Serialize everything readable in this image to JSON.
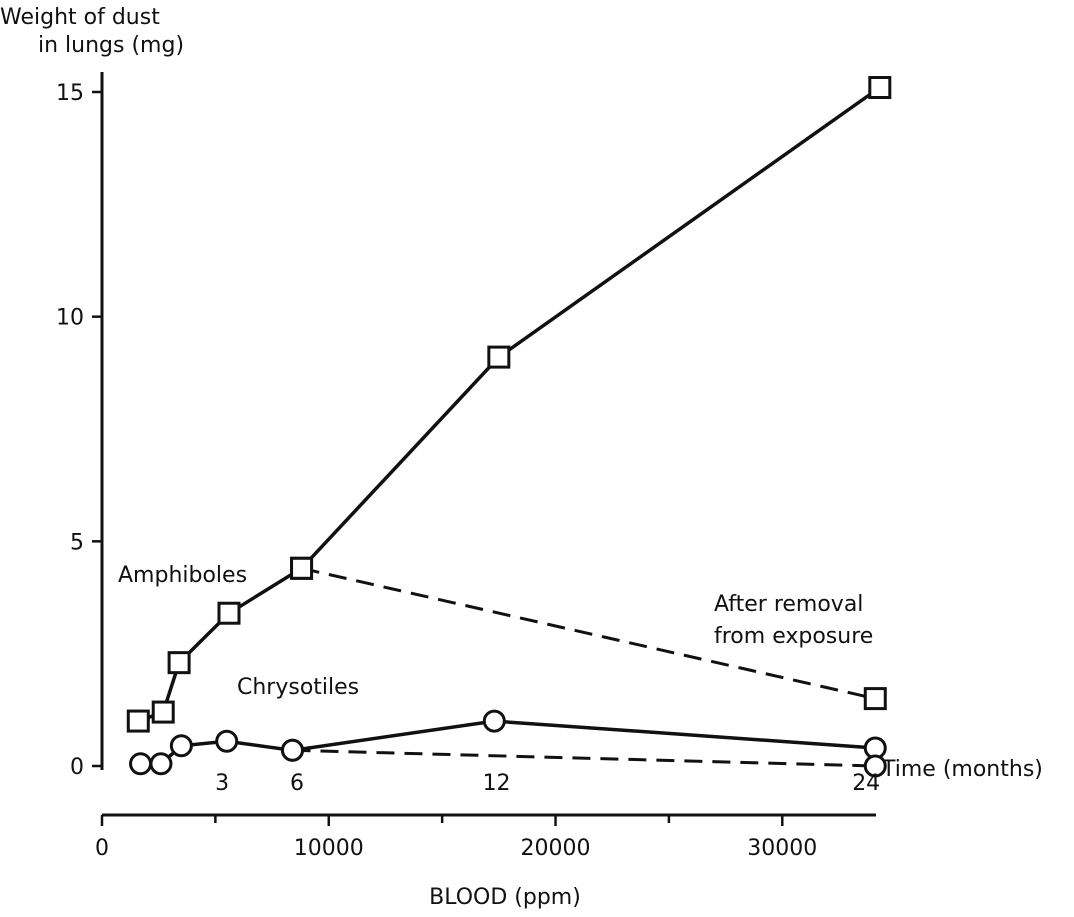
{
  "chart_data": {
    "type": "line",
    "ylabel_line1": "Weight of dust",
    "ylabel_line2": "in lungs (mg)",
    "xlabel": "BLOOD (ppm)",
    "xlim": [
      0,
      34000
    ],
    "ylim": [
      0,
      16
    ],
    "x_ticks": [
      0,
      10000,
      20000,
      30000
    ],
    "x_minor_ticks": [
      5000,
      15000,
      25000
    ],
    "y_ticks": [
      0,
      5,
      10,
      15
    ],
    "series": [
      {
        "name": "Amphiboles",
        "style": "solid",
        "marker": "square",
        "points": [
          [
            1600,
            1.0
          ],
          [
            2700,
            1.2
          ],
          [
            3400,
            2.3
          ],
          [
            5600,
            3.4
          ],
          [
            8800,
            4.4
          ],
          [
            17500,
            9.1
          ],
          [
            34300,
            15.1
          ]
        ]
      },
      {
        "name": "Chrysotiles",
        "style": "solid",
        "marker": "circle",
        "points": [
          [
            1700,
            0.05
          ],
          [
            2600,
            0.05
          ],
          [
            3500,
            0.45
          ],
          [
            5500,
            0.55
          ],
          [
            8400,
            0.35
          ],
          [
            17300,
            1.0
          ],
          [
            34100,
            0.4
          ]
        ]
      },
      {
        "style": "dashed",
        "marker": "square",
        "points": [
          [
            8800,
            4.4
          ],
          [
            34100,
            1.5
          ]
        ]
      },
      {
        "style": "dashed",
        "marker": "circle",
        "points": [
          [
            8400,
            0.35
          ],
          [
            34100,
            0.0
          ]
        ]
      }
    ],
    "time_labels": [
      {
        "x": 5300,
        "text": "3"
      },
      {
        "x": 8600,
        "text": "6"
      },
      {
        "x": 17400,
        "text": "12"
      },
      {
        "x": 33700,
        "text": "24"
      }
    ],
    "annotations": {
      "amphiboles": "Amphiboles",
      "chrysotiles": "Chrysotiles",
      "after_removal_line1": "After removal",
      "after_removal_line2": "from exposure",
      "time": "Time (months)"
    }
  }
}
